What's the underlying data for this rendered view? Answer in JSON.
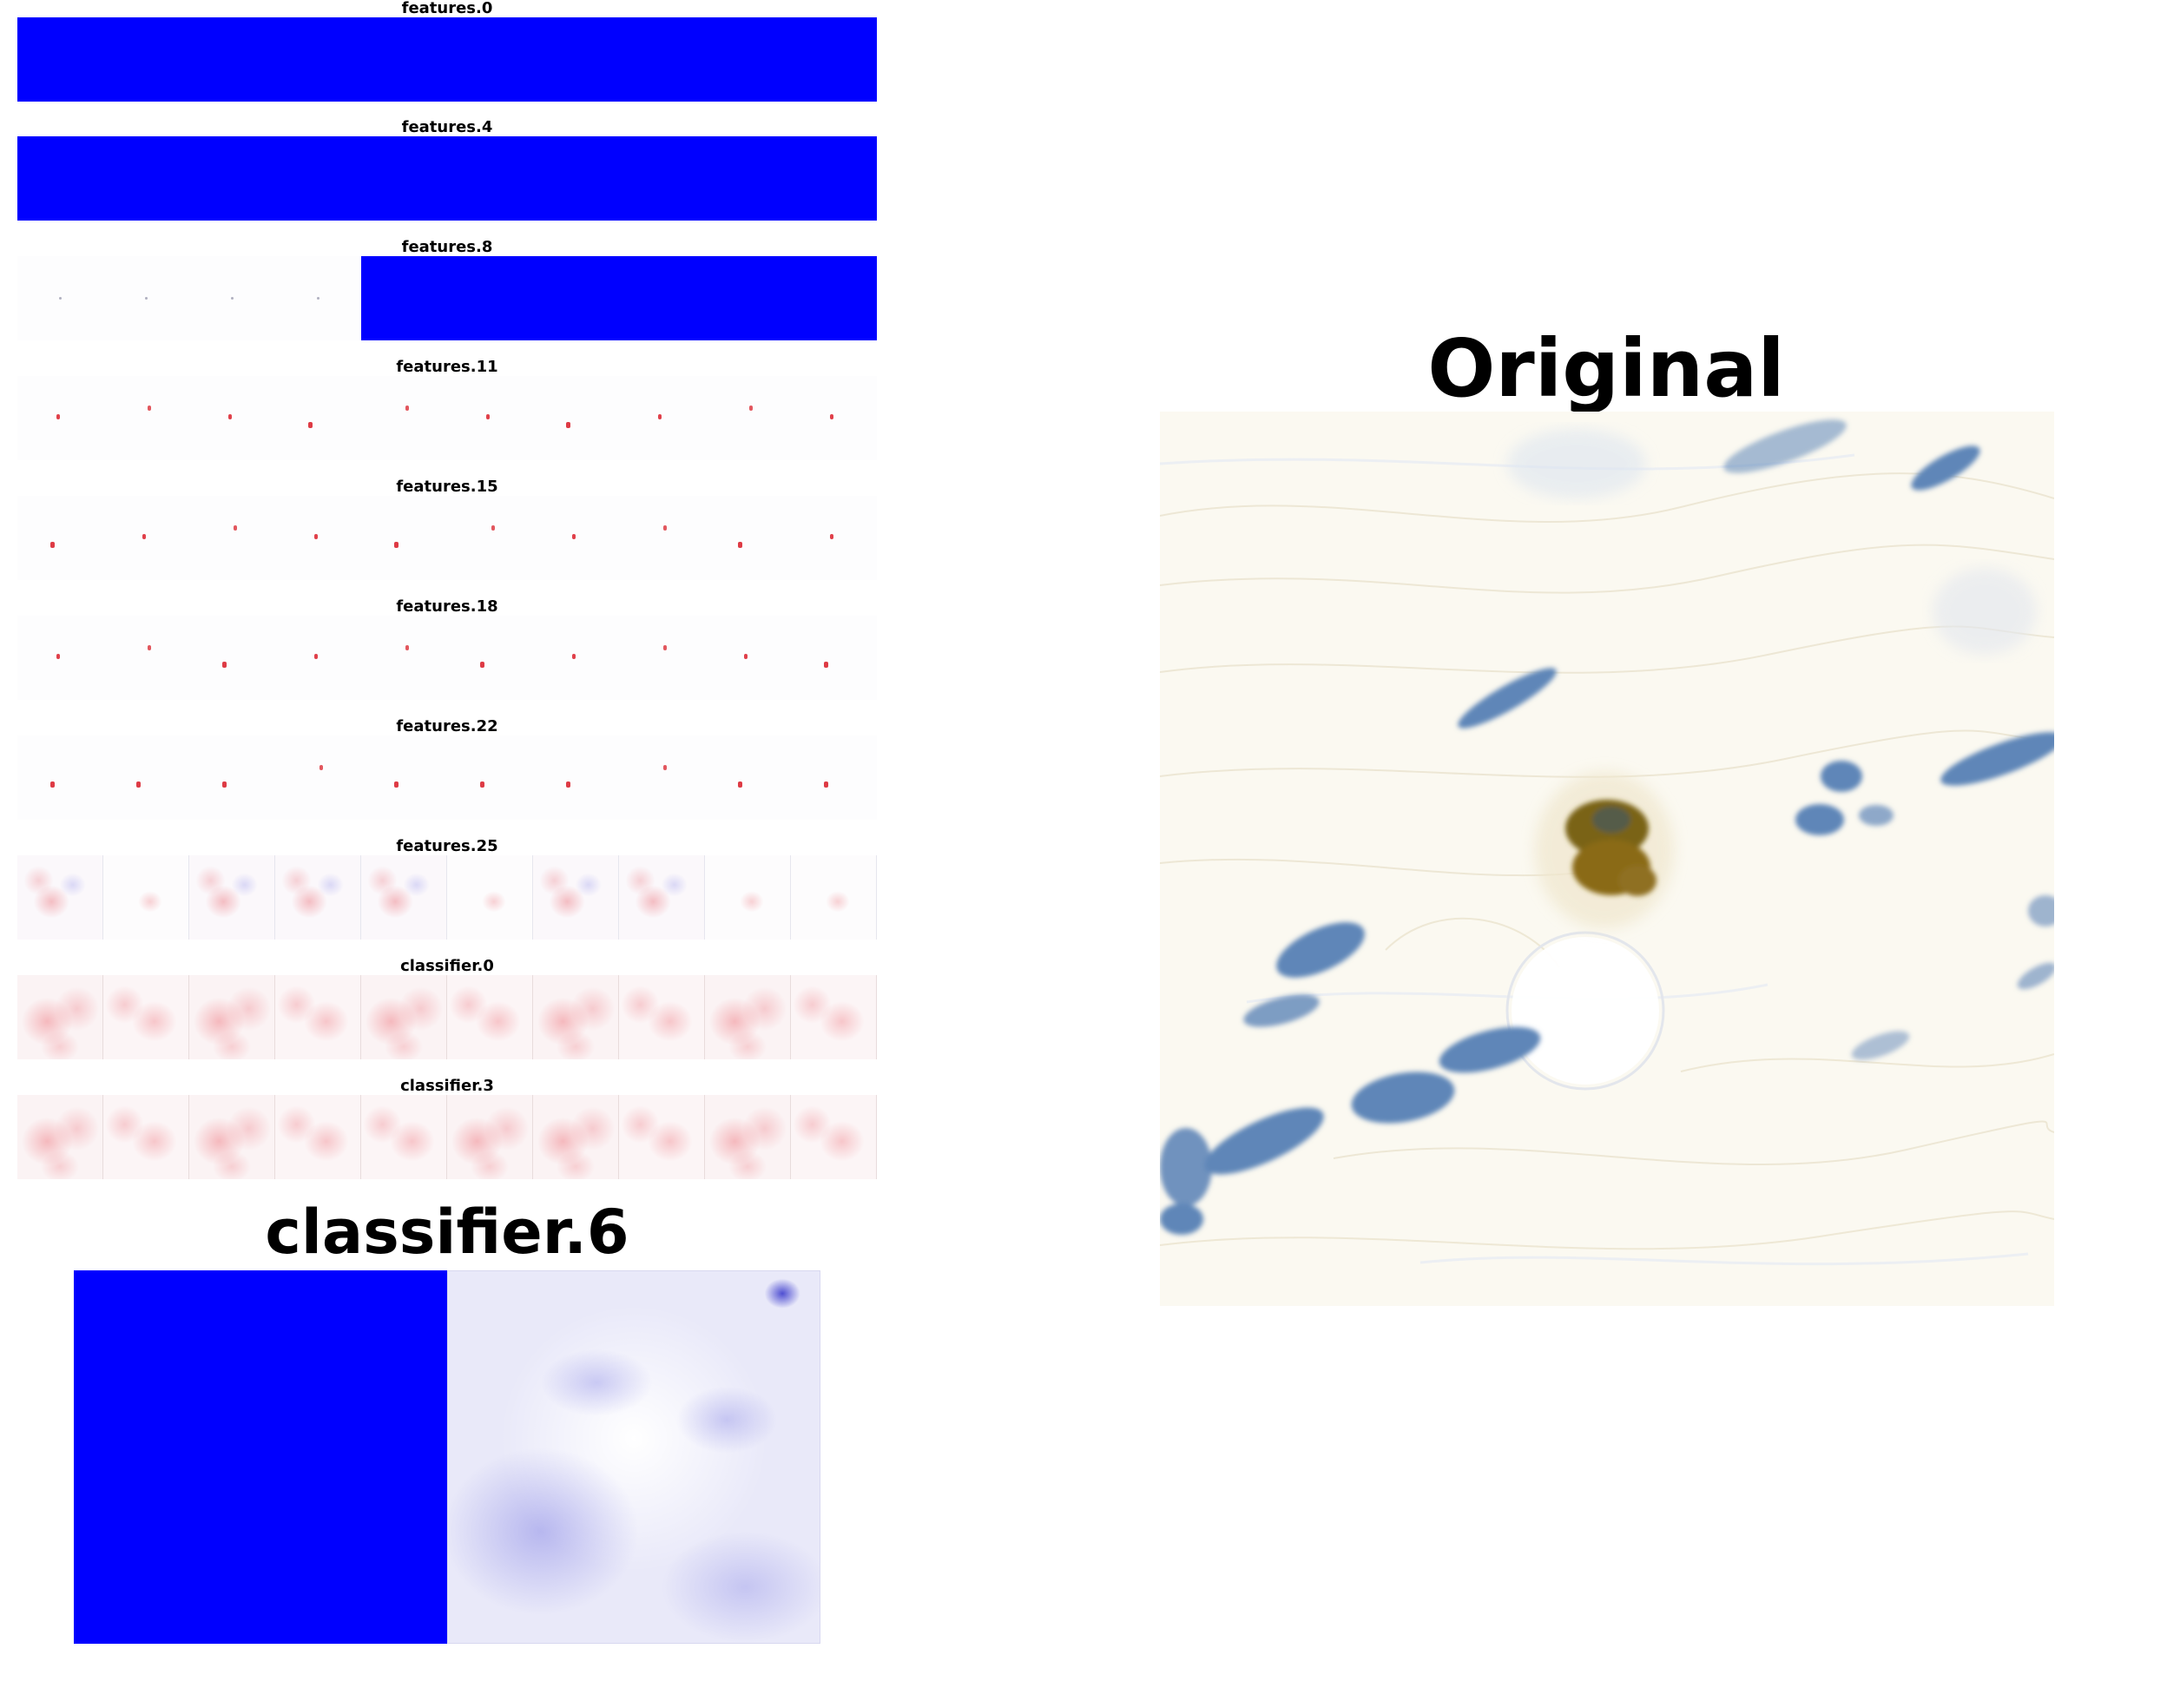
{
  "panels": {
    "features_0": "features.0",
    "features_4": "features.4",
    "features_8": "features.8",
    "features_11": "features.11",
    "features_15": "features.15",
    "features_18": "features.18",
    "features_22": "features.22",
    "features_25": "features.25",
    "classifier_0": "classifier.0",
    "classifier_3": "classifier.3",
    "classifier_6": "classifier.6"
  },
  "original": {
    "title": "Original"
  },
  "colors": {
    "saturated_blue": "#0000ff",
    "positive_red": "#e0404a",
    "stain_brown": "#8a6a16",
    "nucleus_blue": "#5f86b8"
  }
}
